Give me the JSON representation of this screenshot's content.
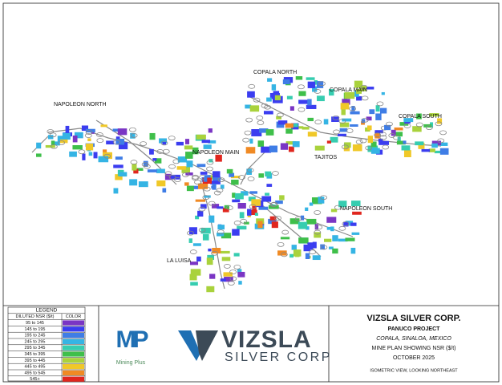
{
  "map_labels": [
    "NAPOLEON NORTH",
    "COPALA NORTH",
    "COPALA MAIN",
    "COPALA SOUTH",
    "TAJITOS",
    "NAPOLEON MAIN",
    "NAPOLEON SOUTH",
    "LA LUISA"
  ],
  "legend": {
    "title": "LEGEND",
    "headers": [
      "DILUTED NSR ($/t)",
      "COLOR"
    ],
    "rows": [
      {
        "range": "95 to 145",
        "color": "#7a35c4"
      },
      {
        "range": "145 to 195",
        "color": "#3b3df0"
      },
      {
        "range": "195 to 245",
        "color": "#3f7de6"
      },
      {
        "range": "245 to 295",
        "color": "#35b4e4"
      },
      {
        "range": "295 to 345",
        "color": "#36cdb0"
      },
      {
        "range": "345 to 395",
        "color": "#3fbf4a"
      },
      {
        "range": "395 to 445",
        "color": "#a9d23c"
      },
      {
        "range": "445 to 495",
        "color": "#f0c828"
      },
      {
        "range": "495 to 545",
        "color": "#f08a24"
      },
      {
        "range": "545+",
        "color": "#e0261e"
      }
    ]
  },
  "logos": {
    "mining_plus": {
      "mark": "MP",
      "name": "Mining Plus"
    },
    "vizsla": {
      "name": "VIZSLA",
      "tagline": "SILVER CORP"
    }
  },
  "title_block": {
    "company": "VIZSLA SILVER CORP.",
    "project": "PANUCO PROJECT",
    "location": "COPALA, SINALOA, MEXICO",
    "description": "MINE PLAN SHOWING NSR ($/t)",
    "date": "OCTOBER 2025",
    "view": "ISOMETRIC VIEW, LOOKING NORTHEAST"
  }
}
